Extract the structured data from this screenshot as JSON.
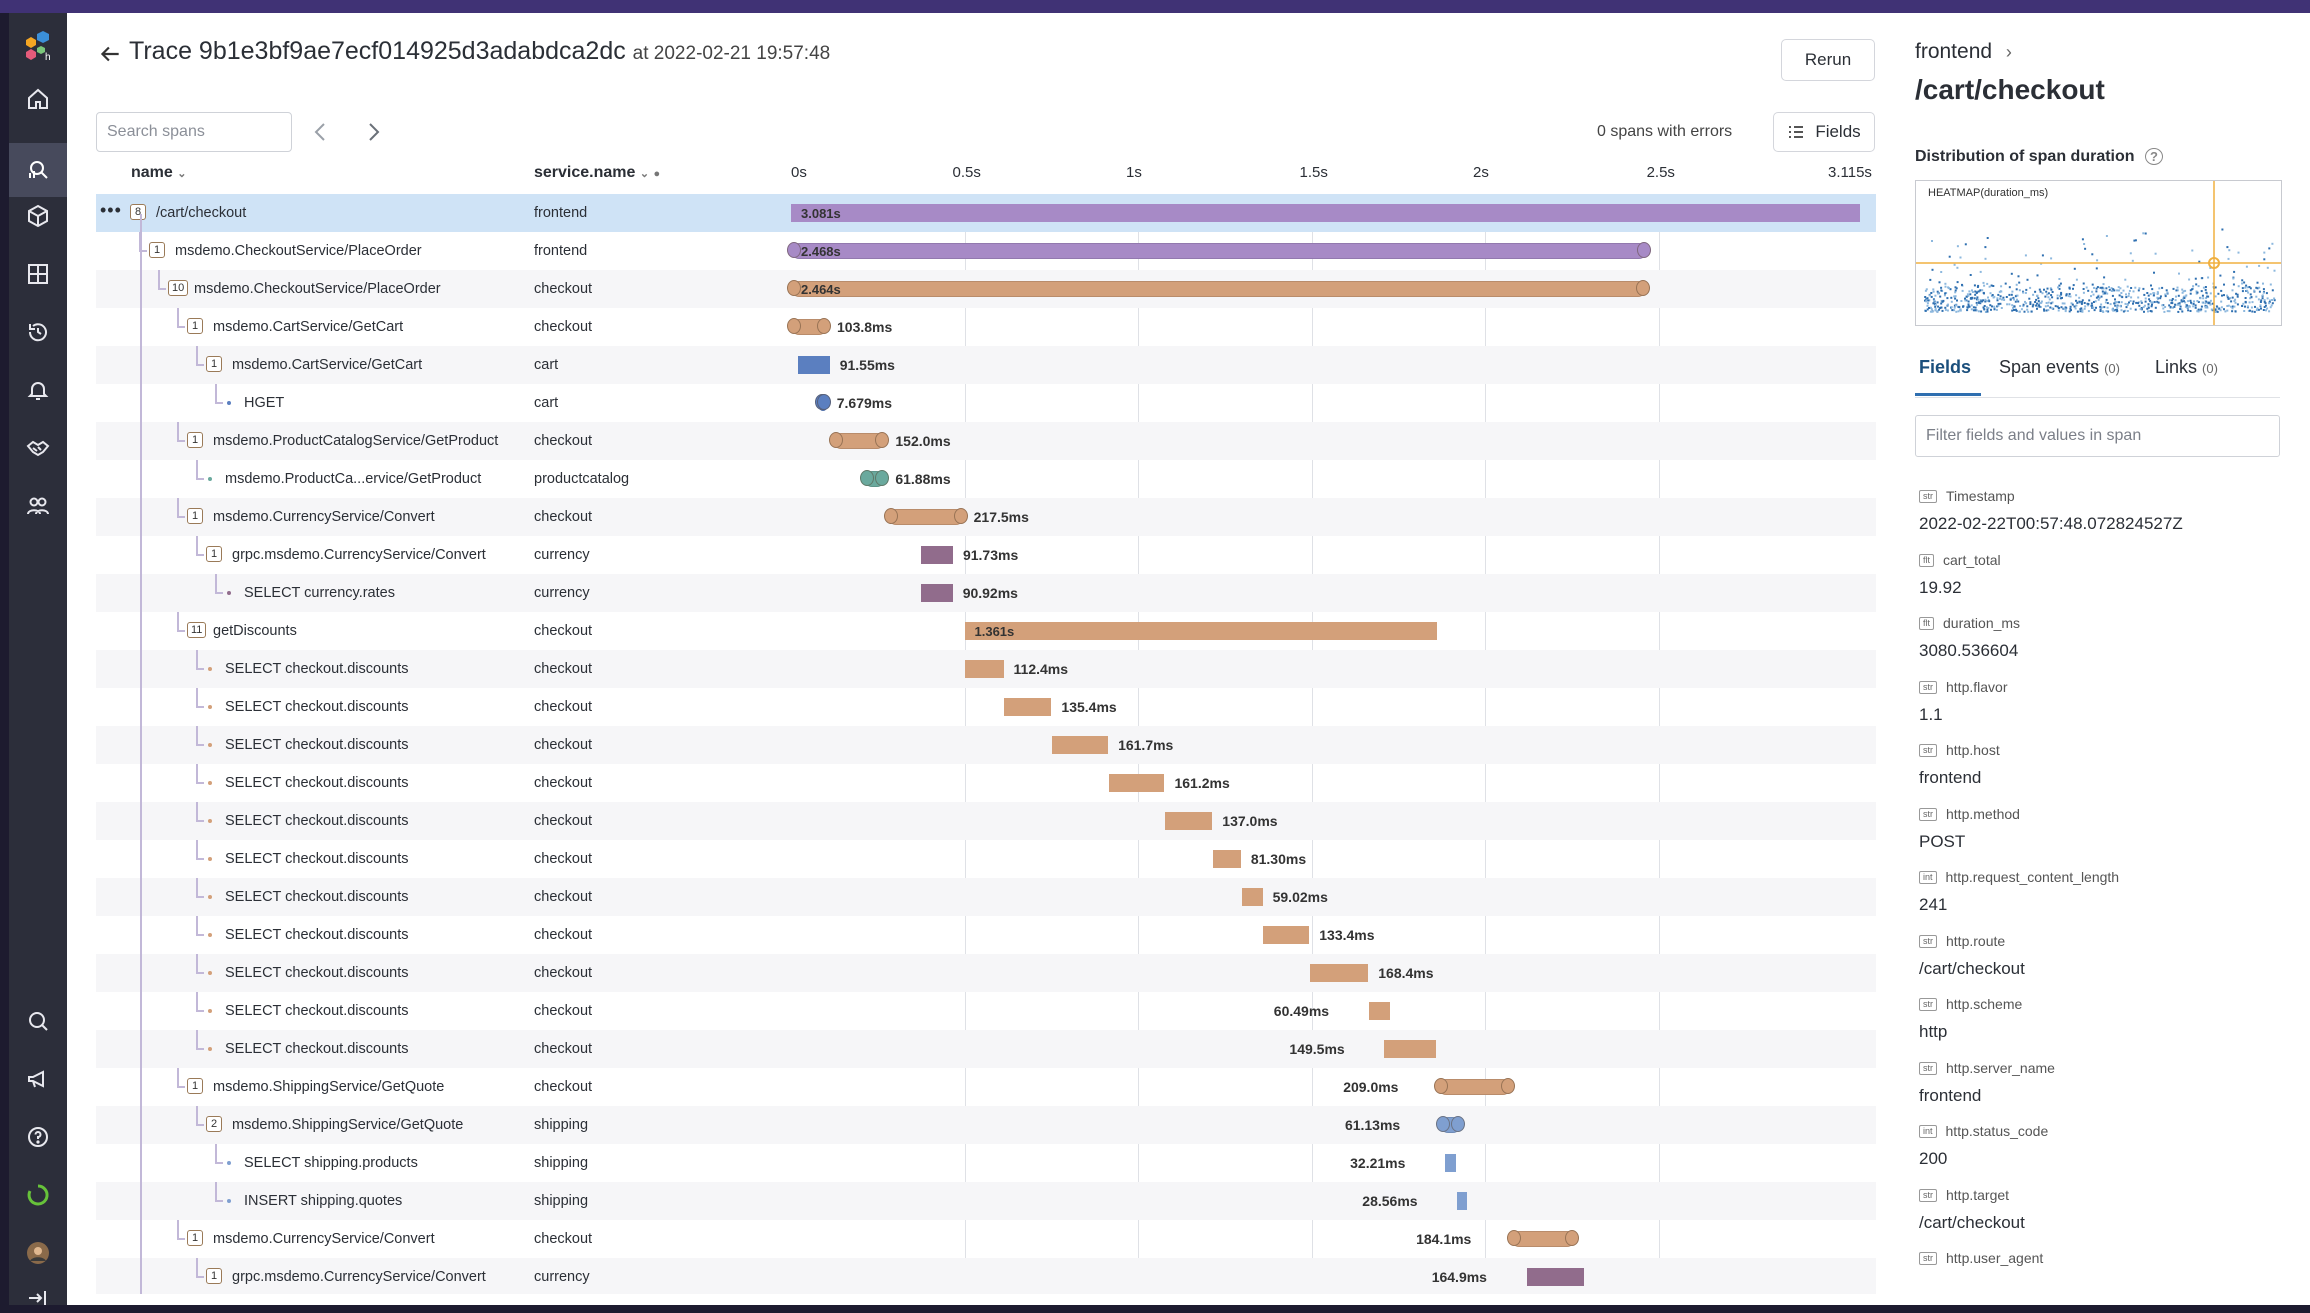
{
  "app": {
    "accent": "#403275",
    "rail_bg": "#2c2e3a"
  },
  "rail": {
    "items": [
      "home-icon",
      "query-icon",
      "datasets-icon",
      "boards-icon",
      "history-icon",
      "triggers-icon",
      "slo-icon",
      "team-icon"
    ],
    "bottom": [
      "search-icon",
      "megaphone-icon",
      "help-icon",
      "status-ring-icon",
      "avatar",
      "collapse-icon"
    ]
  },
  "header": {
    "title": "Trace 9b1e3bf9ae7ecf014925d3adabdca2dc",
    "at": "at 2022-02-21 19:57:48",
    "rerun": "Rerun"
  },
  "toolbar": {
    "search_placeholder": "Search spans",
    "errors": "0 spans with errors",
    "fields": "Fields"
  },
  "columns": {
    "name": "name",
    "service": "service.name"
  },
  "chart_data": {
    "type": "gantt",
    "x_unit": "s",
    "xlim": [
      0,
      3.115
    ],
    "ticks": [
      "0s",
      "0.5s",
      "1s",
      "1.5s",
      "2s",
      "2.5s",
      "3.115s"
    ],
    "tick_values": [
      0,
      0.5,
      1,
      1.5,
      2,
      2.5,
      3.115
    ],
    "spans": [
      {
        "name": "/cart/checkout",
        "service": "frontend",
        "count": "8",
        "depth": 0,
        "start": 0,
        "dur": 3.081,
        "label": "3.081s",
        "color": "#a78ac6",
        "label_inside": true,
        "ends": false,
        "selected": true
      },
      {
        "name": "msdemo.CheckoutService/PlaceOrder",
        "service": "frontend",
        "count": "1",
        "depth": 1,
        "start": 0,
        "dur": 2.468,
        "label": "2.468s",
        "color": "#a78ac6",
        "label_inside": true,
        "ends": true
      },
      {
        "name": "msdemo.CheckoutService/PlaceOrder",
        "service": "checkout",
        "count": "10",
        "depth": 2,
        "start": 0,
        "dur": 2.464,
        "label": "2.464s",
        "color": "#d3a07a",
        "label_inside": true,
        "ends": true
      },
      {
        "name": "msdemo.CartService/GetCart",
        "service": "checkout",
        "count": "1",
        "depth": 3,
        "start": 0,
        "dur": 0.1038,
        "label": "103.8ms",
        "color": "#d3a07a",
        "ends": true
      },
      {
        "name": "msdemo.CartService/GetCart",
        "service": "cart",
        "count": "1",
        "depth": 4,
        "start": 0.02,
        "dur": 0.09155,
        "label": "91.55ms",
        "color": "#5b7fc0"
      },
      {
        "name": "HGET",
        "service": "cart",
        "count": "",
        "depth": 5,
        "start": 0.08,
        "dur": 0.007679,
        "label": "7.679ms",
        "color": "#5b7fc0",
        "ends": true
      },
      {
        "name": "msdemo.ProductCatalogService/GetProduct",
        "service": "checkout",
        "count": "1",
        "depth": 3,
        "start": 0.12,
        "dur": 0.152,
        "label": "152.0ms",
        "color": "#d3a07a",
        "ends": true
      },
      {
        "name": "msdemo.ProductCa...ervice/GetProduct",
        "service": "productcatalog",
        "count": "",
        "depth": 4,
        "start": 0.21,
        "dur": 0.06188,
        "label": "61.88ms",
        "color": "#6aa99d",
        "ends": true
      },
      {
        "name": "msdemo.CurrencyService/Convert",
        "service": "checkout",
        "count": "1",
        "depth": 3,
        "start": 0.28,
        "dur": 0.2175,
        "label": "217.5ms",
        "color": "#d3a07a",
        "ends": true
      },
      {
        "name": "grpc.msdemo.CurrencyService/Convert",
        "service": "currency",
        "count": "1",
        "depth": 4,
        "start": 0.375,
        "dur": 0.09173,
        "label": "91.73ms",
        "color": "#916c8c"
      },
      {
        "name": "SELECT currency.rates",
        "service": "currency",
        "count": "",
        "depth": 5,
        "start": 0.375,
        "dur": 0.09092,
        "label": "90.92ms",
        "color": "#916c8c"
      },
      {
        "name": "getDiscounts",
        "service": "checkout",
        "count": "11",
        "depth": 3,
        "start": 0.5,
        "dur": 1.361,
        "label": "1.361s",
        "color": "#d3a07a",
        "label_inside": true
      },
      {
        "name": "SELECT checkout.discounts",
        "service": "checkout",
        "count": "",
        "depth": 4,
        "start": 0.5,
        "dur": 0.1124,
        "label": "112.4ms",
        "color": "#d3a07a"
      },
      {
        "name": "SELECT checkout.discounts",
        "service": "checkout",
        "count": "",
        "depth": 4,
        "start": 0.615,
        "dur": 0.1354,
        "label": "135.4ms",
        "color": "#d3a07a"
      },
      {
        "name": "SELECT checkout.discounts",
        "service": "checkout",
        "count": "",
        "depth": 4,
        "start": 0.752,
        "dur": 0.1617,
        "label": "161.7ms",
        "color": "#d3a07a"
      },
      {
        "name": "SELECT checkout.discounts",
        "service": "checkout",
        "count": "",
        "depth": 4,
        "start": 0.915,
        "dur": 0.1612,
        "label": "161.2ms",
        "color": "#d3a07a"
      },
      {
        "name": "SELECT checkout.discounts",
        "service": "checkout",
        "count": "",
        "depth": 4,
        "start": 1.077,
        "dur": 0.137,
        "label": "137.0ms",
        "color": "#d3a07a"
      },
      {
        "name": "SELECT checkout.discounts",
        "service": "checkout",
        "count": "",
        "depth": 4,
        "start": 1.215,
        "dur": 0.0813,
        "label": "81.30ms",
        "color": "#d3a07a"
      },
      {
        "name": "SELECT checkout.discounts",
        "service": "checkout",
        "count": "",
        "depth": 4,
        "start": 1.3,
        "dur": 0.05902,
        "label": "59.02ms",
        "color": "#d3a07a"
      },
      {
        "name": "SELECT checkout.discounts",
        "service": "checkout",
        "count": "",
        "depth": 4,
        "start": 1.36,
        "dur": 0.1334,
        "label": "133.4ms",
        "color": "#d3a07a"
      },
      {
        "name": "SELECT checkout.discounts",
        "service": "checkout",
        "count": "",
        "depth": 4,
        "start": 1.495,
        "dur": 0.1684,
        "label": "168.4ms",
        "color": "#d3a07a"
      },
      {
        "name": "SELECT checkout.discounts",
        "service": "checkout",
        "count": "",
        "depth": 4,
        "start": 1.665,
        "dur": 0.06049,
        "label": "60.49ms",
        "color": "#d3a07a",
        "label_left": true
      },
      {
        "name": "SELECT checkout.discounts",
        "service": "checkout",
        "count": "",
        "depth": 4,
        "start": 1.71,
        "dur": 0.1495,
        "label": "149.5ms",
        "color": "#d3a07a",
        "label_left": true
      },
      {
        "name": "msdemo.ShippingService/GetQuote",
        "service": "checkout",
        "count": "1",
        "depth": 3,
        "start": 1.865,
        "dur": 0.209,
        "label": "209.0ms",
        "color": "#d3a07a",
        "label_left": true,
        "ends": true
      },
      {
        "name": "msdemo.ShippingService/GetQuote",
        "service": "shipping",
        "count": "2",
        "depth": 4,
        "start": 1.87,
        "dur": 0.06113,
        "label": "61.13ms",
        "color": "#7f9fd0",
        "label_left": true,
        "ends": true
      },
      {
        "name": "SELECT shipping.products",
        "service": "shipping",
        "count": "",
        "depth": 5,
        "start": 1.885,
        "dur": 0.03221,
        "label": "32.21ms",
        "color": "#7f9fd0",
        "label_left": true
      },
      {
        "name": "INSERT shipping.quotes",
        "service": "shipping",
        "count": "",
        "depth": 5,
        "start": 1.92,
        "dur": 0.02856,
        "label": "28.56ms",
        "color": "#7f9fd0",
        "label_left": true
      },
      {
        "name": "msdemo.CurrencyService/Convert",
        "service": "checkout",
        "count": "1",
        "depth": 3,
        "start": 2.075,
        "dur": 0.1841,
        "label": "184.1ms",
        "color": "#d3a07a",
        "label_left": true,
        "ends": true
      },
      {
        "name": "grpc.msdemo.CurrencyService/Convert",
        "service": "currency",
        "count": "1",
        "depth": 4,
        "start": 2.12,
        "dur": 0.1649,
        "label": "164.9ms",
        "color": "#916c8c",
        "label_left": true
      }
    ]
  },
  "side": {
    "service": "frontend",
    "operation": "/cart/checkout",
    "distribution_title": "Distribution of span duration",
    "heatmap_label": "HEATMAP(duration_ms)",
    "tabs": [
      {
        "label": "Fields",
        "count": ""
      },
      {
        "label": "Span events",
        "count": "(0)"
      },
      {
        "label": "Links",
        "count": "(0)"
      }
    ],
    "filter_placeholder": "Filter fields and values in span",
    "fields": [
      {
        "type": "str",
        "key": "Timestamp",
        "value": "2022-02-22T00:57:48.072824527Z"
      },
      {
        "type": "flt",
        "key": "cart_total",
        "value": "19.92"
      },
      {
        "type": "flt",
        "key": "duration_ms",
        "value": "3080.536604"
      },
      {
        "type": "str",
        "key": "http.flavor",
        "value": "1.1"
      },
      {
        "type": "str",
        "key": "http.host",
        "value": "frontend"
      },
      {
        "type": "str",
        "key": "http.method",
        "value": "POST"
      },
      {
        "type": "int",
        "key": "http.request_content_length",
        "value": "241"
      },
      {
        "type": "str",
        "key": "http.route",
        "value": "/cart/checkout"
      },
      {
        "type": "str",
        "key": "http.scheme",
        "value": "http"
      },
      {
        "type": "str",
        "key": "http.server_name",
        "value": "frontend"
      },
      {
        "type": "int",
        "key": "http.status_code",
        "value": "200"
      },
      {
        "type": "str",
        "key": "http.target",
        "value": "/cart/checkout"
      },
      {
        "type": "str",
        "key": "http.user_agent",
        "value": ""
      }
    ]
  }
}
